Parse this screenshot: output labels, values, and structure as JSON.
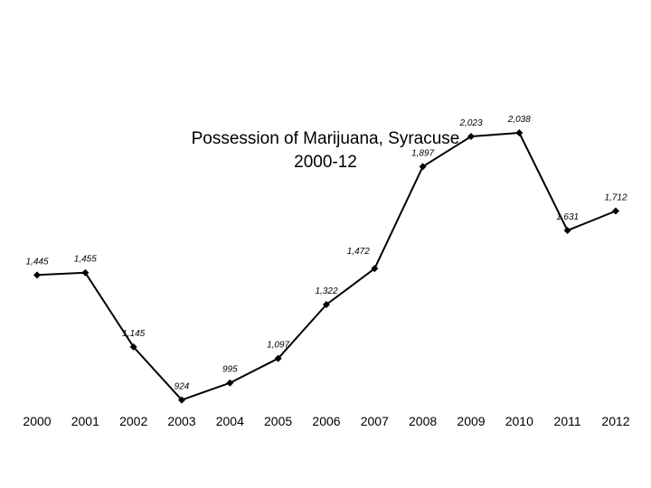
{
  "chart_data": {
    "type": "line",
    "title": "Possession of Marijuana, Syracuse",
    "subtitle": "2000-12",
    "xlabel": "",
    "ylabel": "",
    "categories": [
      "2000",
      "2001",
      "2002",
      "2003",
      "2004",
      "2005",
      "2006",
      "2007",
      "2008",
      "2009",
      "2010",
      "2011",
      "2012"
    ],
    "values": [
      1445,
      1455,
      1145,
      924,
      995,
      1097,
      1322,
      1472,
      1897,
      2023,
      2038,
      1631,
      1712
    ],
    "data_labels": [
      "1,445",
      "1,455",
      "1,145",
      "924",
      "995",
      "1,097",
      "1,322",
      "1,472",
      "1,897",
      "2,023",
      "2,038",
      "1,631",
      "1,712"
    ],
    "marker": "diamond",
    "line_color": "#000000",
    "grid": false,
    "legend": "none"
  }
}
